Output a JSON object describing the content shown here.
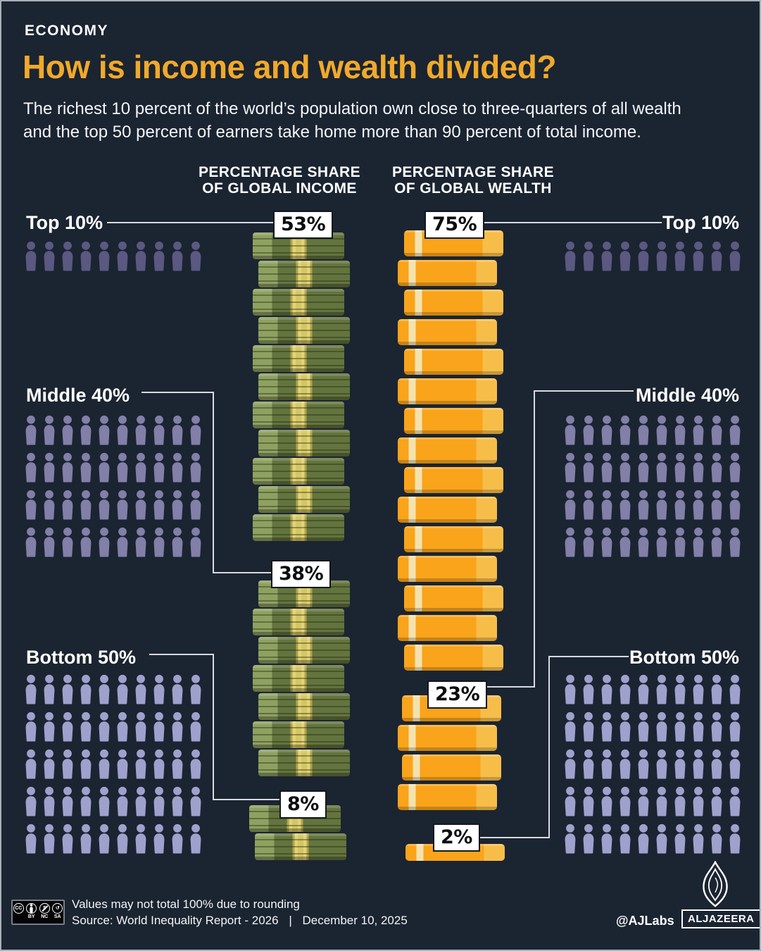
{
  "header": {
    "kicker": "ECONOMY",
    "title": "How is income and wealth divided?",
    "subtitle_line1": "The richest 10 percent of the world’s population own close to three-quarters of all wealth",
    "subtitle_line2": "and the top 50 percent of earners take home more than 90 percent of total income."
  },
  "columns": {
    "income": {
      "line1": "PERCENTAGE SHARE",
      "line2": "OF GLOBAL INCOME"
    },
    "wealth": {
      "line1": "PERCENTAGE SHARE",
      "line2": "OF GLOBAL WEALTH"
    }
  },
  "groups": [
    {
      "id": "top10",
      "label": "Top 10%",
      "icon_rows": 1,
      "icon_cols": 10,
      "icon_color": "#5b5882",
      "income": {
        "value": "53%",
        "units": 11
      },
      "wealth": {
        "value": "75%",
        "units": 15
      }
    },
    {
      "id": "middle40",
      "label": "Middle 40%",
      "icon_rows": 4,
      "icon_cols": 10,
      "icon_color": "#827fa8",
      "income": {
        "value": "38%",
        "units": 7
      },
      "wealth": {
        "value": "23%",
        "units": 4
      }
    },
    {
      "id": "bottom50",
      "label": "Bottom 50%",
      "icon_rows": 5,
      "icon_cols": 10,
      "icon_color": "#9fa1cd",
      "income": {
        "value": "8%",
        "units": 2
      },
      "wealth": {
        "value": "2%",
        "units": 1,
        "short": true
      }
    }
  ],
  "chart_data": {
    "type": "bar",
    "subtype": "pictogram-infographic",
    "title": "How is income and wealth divided?",
    "categories": [
      "Top 10%",
      "Middle 40%",
      "Bottom 50%"
    ],
    "series": [
      {
        "name": "Percentage share of global income",
        "values": [
          53,
          38,
          8
        ],
        "unit_blocks": [
          11,
          7,
          2
        ],
        "unit_style": "green money stacks"
      },
      {
        "name": "Percentage share of global wealth",
        "values": [
          75,
          23,
          2
        ],
        "unit_blocks": [
          15,
          4,
          1
        ],
        "unit_style": "gold bars"
      }
    ],
    "population_icon_counts": {
      "Top 10%": 10,
      "Middle 40%": 40,
      "Bottom 50%": 50
    },
    "colors": {
      "background": "#1b2431",
      "accent_gold": "#f0a92c",
      "money_green": "#64743e",
      "bar_gold": "#f9a41b",
      "icons_top10": "#5b5882",
      "icons_middle40": "#827fa8",
      "icons_bottom50": "#9fa1cd"
    },
    "legend_position": "none",
    "grid": false
  },
  "footer": {
    "note": "Values may not total 100% due to rounding",
    "source": "Source: World Inequality Report - 2026",
    "separator": "|",
    "date": "December 10, 2025",
    "handle": "@AJLabs",
    "brand": "ALJAZEERA",
    "license_circles": [
      "CC",
      "BY",
      "NC",
      "SA"
    ],
    "license_labels": [
      "BY",
      "NC",
      "SA"
    ]
  }
}
